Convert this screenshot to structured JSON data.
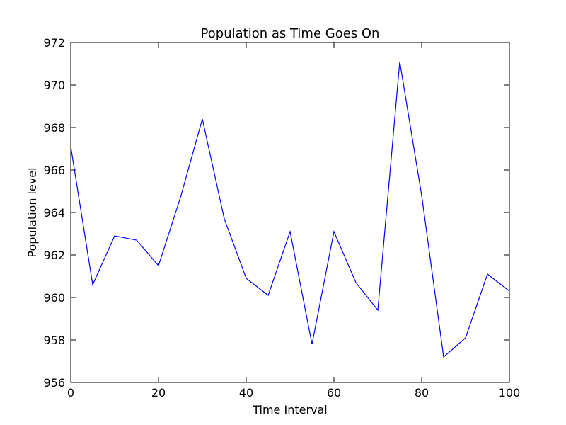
{
  "chart_data": {
    "type": "line",
    "title": "Population as Time Goes On",
    "xlabel": "Time Interval",
    "ylabel": "Population level",
    "xlim": [
      0,
      100
    ],
    "ylim": [
      956,
      972
    ],
    "xticks": [
      0,
      20,
      40,
      60,
      80,
      100
    ],
    "yticks": [
      956,
      958,
      960,
      962,
      964,
      966,
      968,
      970,
      972
    ],
    "grid": false,
    "line_color": "#0000ff",
    "series": [
      {
        "x": [
          0,
          5,
          10,
          15,
          20,
          25,
          30,
          35,
          40,
          45,
          50,
          55,
          60,
          65,
          70,
          75,
          80,
          85,
          90,
          95,
          100
        ],
        "values": [
          967.1,
          960.6,
          962.9,
          962.7,
          961.5,
          964.7,
          968.4,
          963.7,
          960.9,
          960.1,
          963.1,
          957.8,
          963.1,
          960.7,
          959.4,
          971.1,
          964.8,
          957.2,
          958.1,
          961.1,
          960.3
        ]
      }
    ]
  }
}
